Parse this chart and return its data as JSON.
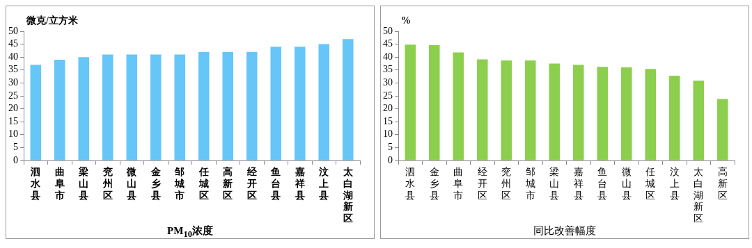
{
  "chart_data": [
    {
      "type": "bar",
      "xlabel": "PM$_{10}$浓度",
      "ylabel": "微克/立方米",
      "categories": [
        "泗水县",
        "曲阜市",
        "梁山县",
        "兖州区",
        "微山县",
        "金乡县",
        "邹城市",
        "任城区",
        "高新区",
        "经开区",
        "鱼台县",
        "嘉祥县",
        "汶上县",
        "太白湖新区"
      ],
      "values": [
        37,
        39,
        40,
        41,
        41,
        41,
        41,
        42,
        42,
        42,
        44,
        44,
        45,
        47
      ],
      "color": "#66c6f7",
      "ylim": [
        0,
        50
      ],
      "yticks": [
        0,
        5,
        10,
        15,
        20,
        25,
        30,
        35,
        40,
        45,
        50
      ],
      "grid": false
    },
    {
      "type": "bar",
      "xlabel": "同比改善幅度",
      "ylabel": "%",
      "categories": [
        "泗水县",
        "金乡县",
        "曲阜市",
        "经开区",
        "兖州区",
        "邹城市",
        "梁山县",
        "嘉祥县",
        "鱼台县",
        "微山县",
        "任城区",
        "汶上县",
        "太白湖新区",
        "高新区"
      ],
      "values": [
        44.8,
        44.6,
        41.8,
        39.1,
        38.7,
        38.7,
        37.5,
        37.0,
        36.2,
        36.0,
        35.4,
        32.8,
        30.9,
        23.8
      ],
      "color": "#8ccf4e",
      "ylim": [
        0,
        50
      ],
      "yticks": [
        0,
        5,
        10,
        15,
        20,
        25,
        30,
        35,
        40,
        45,
        50
      ],
      "grid": false
    }
  ]
}
